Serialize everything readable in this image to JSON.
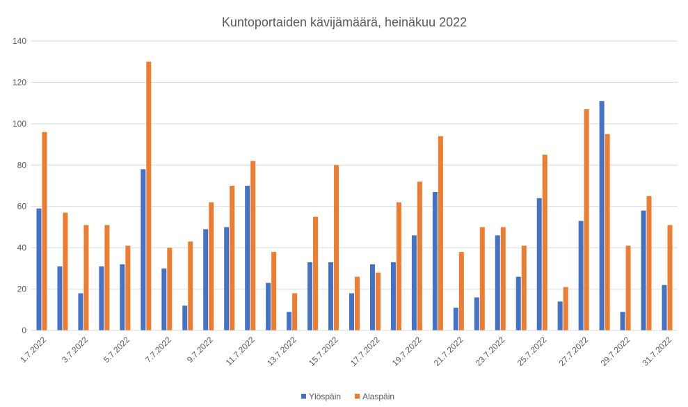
{
  "chart_data": {
    "type": "bar",
    "title": "Kuntoportaiden kävijämäärä, heinäkuu 2022",
    "xlabel": "",
    "ylabel": "",
    "ylim": [
      0,
      140
    ],
    "yticks": [
      0,
      20,
      40,
      60,
      80,
      100,
      120,
      140
    ],
    "grid": true,
    "legend_position": "bottom",
    "categories": [
      "1.7.2022",
      "2.7.2022",
      "3.7.2022",
      "4.7.2022",
      "5.7.2022",
      "6.7.2022",
      "7.7.2022",
      "8.7.2022",
      "9.7.2022",
      "10.7.2022",
      "11.7.2022",
      "12.7.2022",
      "13.7.2022",
      "14.7.2022",
      "15.7.2022",
      "16.7.2022",
      "17.7.2022",
      "18.7.2022",
      "19.7.2022",
      "20.7.2022",
      "21.7.2022",
      "22.7.2022",
      "23.7.2022",
      "24.7.2022",
      "25.7.2022",
      "26.7.2022",
      "27.7.2022",
      "28.7.2022",
      "29.7.2022",
      "30.7.2022",
      "31.7.2022"
    ],
    "visible_tick_labels": [
      "1.7.2022",
      "3.7.2022",
      "5.7.2022",
      "7.7.2022",
      "9.7.2022",
      "11.7.2022",
      "13.7.2022",
      "15.7.2022",
      "17.7.2022",
      "19.7.2022",
      "21.7.2022",
      "23.7.2022",
      "25.7.2022",
      "27.7.2022",
      "29.7.2022",
      "31.7.2022"
    ],
    "series": [
      {
        "name": "Ylöspäin",
        "color": "#4472c4",
        "values": [
          59,
          31,
          18,
          31,
          32,
          78,
          30,
          12,
          49,
          50,
          70,
          23,
          9,
          33,
          33,
          18,
          32,
          33,
          46,
          67,
          11,
          16,
          46,
          26,
          64,
          14,
          53,
          111,
          9,
          58,
          22
        ]
      },
      {
        "name": "Alaspäin",
        "color": "#ed7d31",
        "values": [
          96,
          57,
          51,
          51,
          41,
          130,
          40,
          43,
          62,
          70,
          82,
          38,
          18,
          55,
          80,
          26,
          28,
          62,
          72,
          94,
          38,
          50,
          50,
          41,
          85,
          21,
          107,
          95,
          41,
          65,
          51
        ]
      }
    ]
  }
}
